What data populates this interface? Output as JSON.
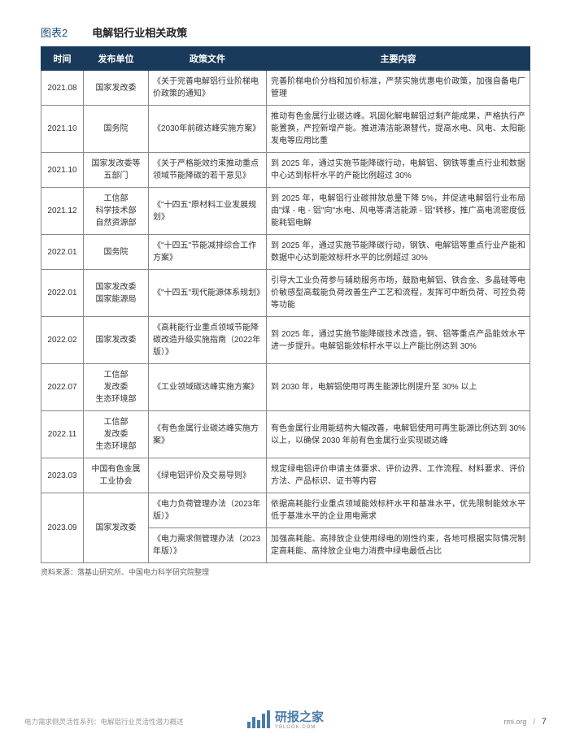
{
  "figure": {
    "label": "图表2",
    "caption": "电解铝行业相关政策"
  },
  "table": {
    "headers": [
      "时间",
      "发布单位",
      "政策文件",
      "主要内容"
    ],
    "rows": [
      {
        "time": "2021.08",
        "dept": "国家发改委",
        "doc": "《关于完善电解铝行业阶梯电价政策的通知》",
        "content": "完善阶梯电价分档和加价标准，严禁实施优惠电价政策，加强自备电厂管理"
      },
      {
        "time": "2021.10",
        "dept": "国务院",
        "doc": "《2030年前碳达峰实施方案》",
        "content": "推动有色金属行业碳达峰。巩固化解电解铝过剩产能成果，严格执行产能置换，严控新增产能。推进清洁能源替代，提高水电、风电、太阳能发电等应用比重"
      },
      {
        "time": "2021.10",
        "dept": "国家发改委等五部门",
        "doc": "《关于严格能效约束推动重点领域节能降碳的若干意见》",
        "content": "到 2025 年，通过实施节能降碳行动，电解铝、钢铁等重点行业和数据中心达到标杆水平的产能比例超过 30%"
      },
      {
        "time": "2021.12",
        "dept": "工信部\n科学技术部\n自然资源部",
        "doc": "《\"十四五\"原材料工业发展规划》",
        "content": "到 2025 年，电解铝行业碳排放总量下降 5%，并促进电解铝行业布局由\"煤 - 电 - 铝\"向\"水电、风电等清洁能源 - 铝\"转移，推广高电流密度低能耗铝电解"
      },
      {
        "time": "2022.01",
        "dept": "国务院",
        "doc": "《\"十四五\"节能减排综合工作方案》",
        "content": "到 2025 年，通过实施节能降碳行动，钢铁、电解铝等重点行业产能和数据中心达到能效标杆水平的比例超过 30%"
      },
      {
        "time": "2022.01",
        "dept": "国家发改委\n国家能源局",
        "doc": "《\"十四五\"现代能源体系规划》",
        "content": "引导大工业负荷参与辅助服务市场，鼓励电解铝、铁合金、多晶硅等电价敏感型高载能负荷改善生产工艺和流程，发挥可中断负荷、可控负荷等功能"
      },
      {
        "time": "2022.02",
        "dept": "国家发改委",
        "doc": "《高耗能行业重点领域节能降碳改造升级实施指南（2022年版）》",
        "content": "到 2025 年，通过实施节能降碳技术改造，铜、铝等重点产品能效水平进一步提升。电解铝能效标杆水平以上产能比例达到 30%"
      },
      {
        "time": "2022.07",
        "dept": "工信部\n发改委\n生态环境部",
        "doc": "《工业领域碳达峰实施方案》",
        "content": "到 2030 年，电解铝使用可再生能源比例提升至 30% 以上"
      },
      {
        "time": "2022.11",
        "dept": "工信部\n发改委\n生态环境部",
        "doc": "《有色金属行业碳达峰实施方案》",
        "content": "有色金属行业用能结构大幅改善，电解铝使用可再生能源比例达到 30% 以上，以确保 2030 年前有色金属行业实现碳达峰"
      },
      {
        "time": "2023.03",
        "dept": "中国有色金属工业协会",
        "doc": "《绿电铝评价及交易导则》",
        "content": "规定绿电铝评价申请主体要求、评价边界、工作流程、材料要求、评价方法、产品标识、证书等内容"
      },
      {
        "time": "2023.09",
        "dept": "国家发改委",
        "doc": "《电力负荷管理办法（2023年版）》",
        "content": "依据高耗能行业重点领域能效标杆水平和基准水平，优先限制能效水平低于基准水平的企业用电需求",
        "rowspan": 2
      },
      {
        "time": "",
        "dept": "",
        "doc": "《电力需求侧管理办法（2023年版）》",
        "content": "加强高耗能、高排放企业使用绿电的刚性约束，各地可根据实际情况制定高耗能、高排放企业电力消费中绿电最低占比"
      }
    ]
  },
  "source": "资料来源：落基山研究所、中国电力科学研究院整理",
  "footer": {
    "left": "电力需求侧灵活性系列：电解铝行业灵活性潜力概述",
    "logo": "研报之家",
    "logo_sub": "YBLOOK.COM",
    "url": "rmi.org",
    "page": "7"
  }
}
